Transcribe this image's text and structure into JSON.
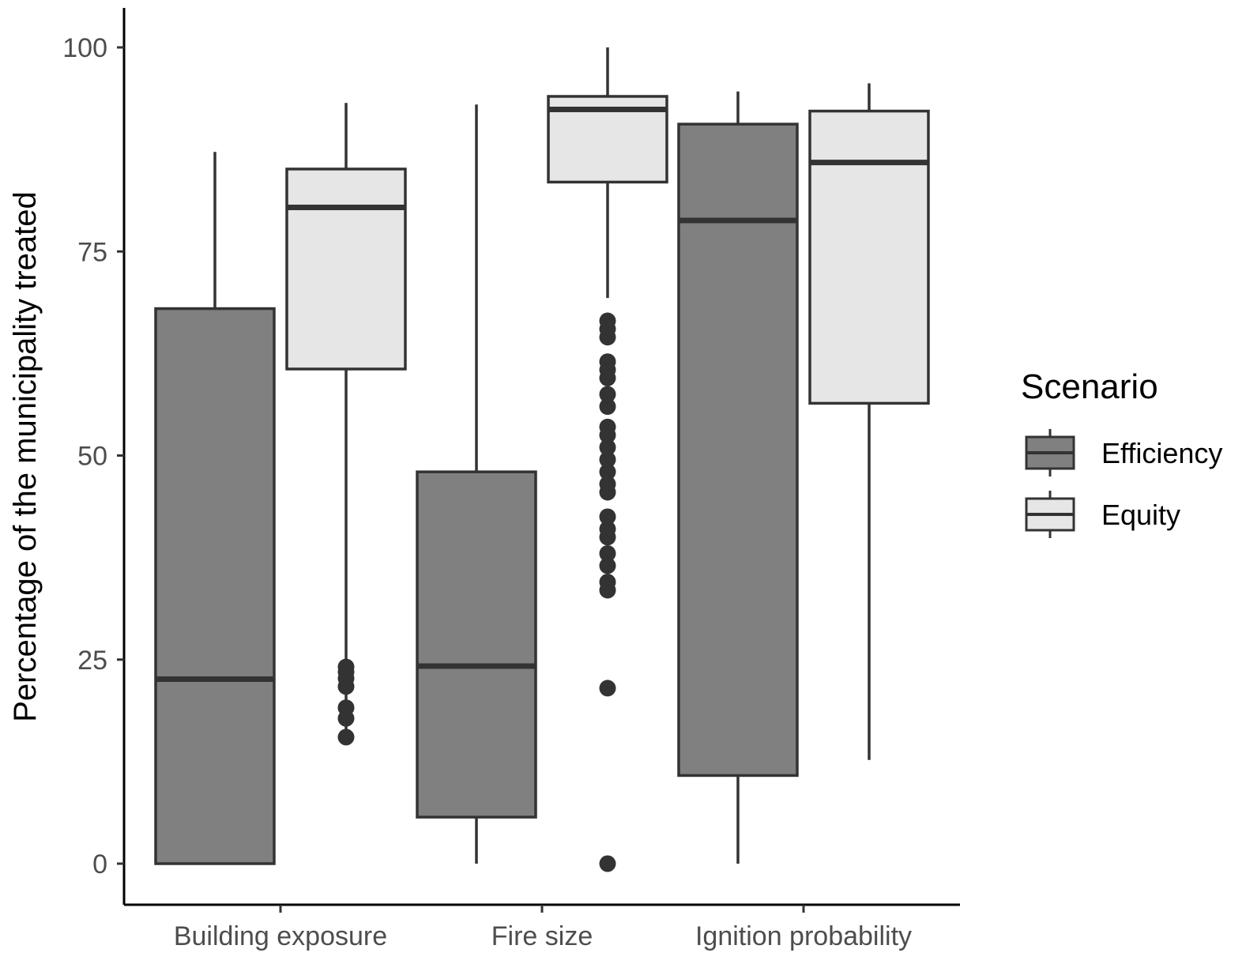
{
  "chart_data": {
    "type": "boxplot",
    "title": "",
    "xlabel": "",
    "ylabel": "Percentage of the municipality treated",
    "ylim": [
      -5,
      105
    ],
    "yticks": [
      0,
      25,
      50,
      75,
      100
    ],
    "grid": false,
    "legend_position": "right",
    "legend_title": "Scenario",
    "categories": [
      "Building exposure",
      "Fire size",
      "Ignition probability"
    ],
    "series": [
      {
        "name": "Efficiency",
        "color": "#808080",
        "boxes": [
          {
            "whisker_low": 0,
            "q1": 0,
            "median": 22.6,
            "q3": 68,
            "whisker_high": 87.2,
            "outliers": []
          },
          {
            "whisker_low": 0,
            "q1": 5.7,
            "median": 24.2,
            "q3": 48,
            "whisker_high": 93,
            "outliers": []
          },
          {
            "whisker_low": 0,
            "q1": 10.8,
            "median": 78.8,
            "q3": 90.6,
            "whisker_high": 94.6,
            "outliers": []
          }
        ]
      },
      {
        "name": "Equity",
        "color": "#e6e6e6",
        "boxes": [
          {
            "whisker_low": 15.7,
            "q1": 60.6,
            "median": 80.4,
            "q3": 85.1,
            "whisker_high": 93.2,
            "outliers": [
              15.5,
              17.8,
              19.1,
              21.7,
              22.7,
              23.5,
              24.1
            ]
          },
          {
            "whisker_low": 69.3,
            "q1": 83.5,
            "median": 92.4,
            "q3": 94,
            "whisker_high": 100,
            "outliers": [
              0,
              21.5,
              33.5,
              34.5,
              36.5,
              38,
              40,
              41,
              42.5,
              45.5,
              46.5,
              48,
              49.5,
              51,
              52.5,
              53.5,
              56,
              57.5,
              59.5,
              60.5,
              61.5,
              64.5,
              65.5,
              66.5
            ]
          },
          {
            "whisker_low": 12.7,
            "q1": 56.4,
            "median": 85.9,
            "q3": 92.2,
            "whisker_high": 95.6,
            "outliers": []
          }
        ]
      }
    ]
  }
}
